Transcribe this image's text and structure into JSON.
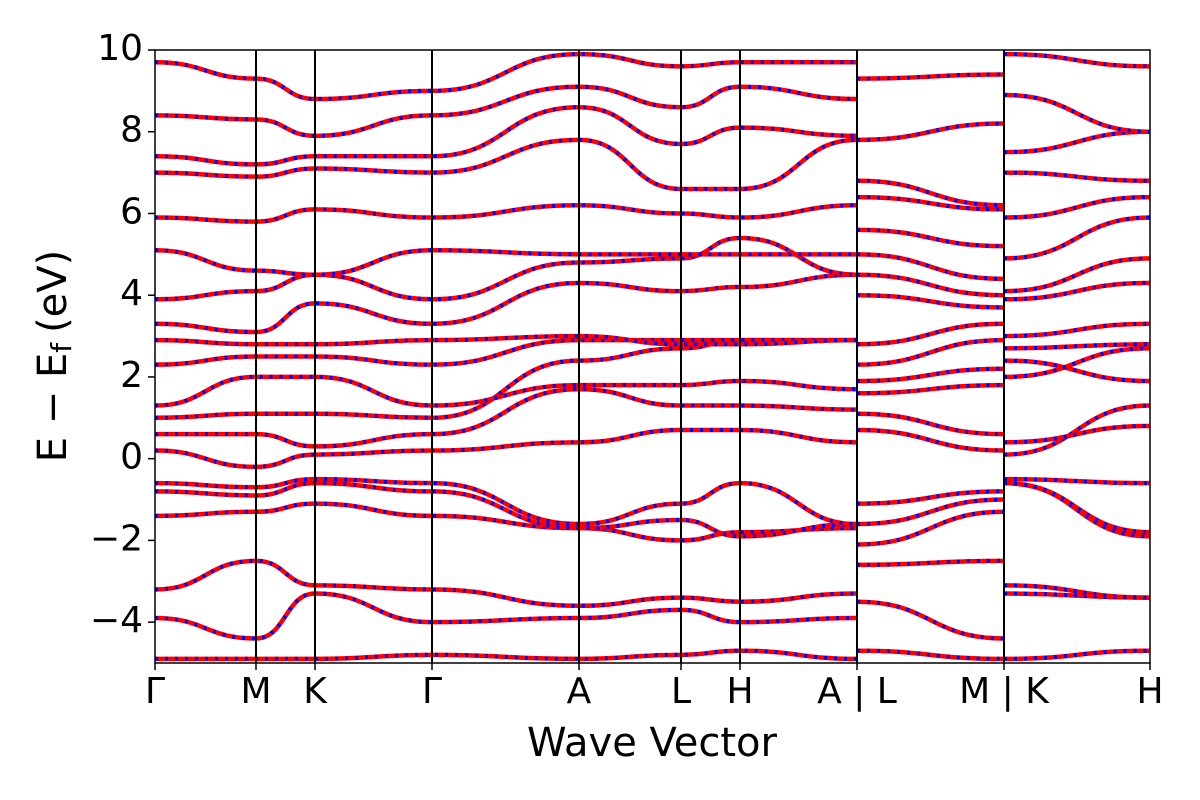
{
  "chart_data": {
    "type": "band",
    "xlabel": "Wave Vector",
    "ylabel": {
      "main": "E − E",
      "sub": "f",
      "unit": "(eV)"
    },
    "xlim": [
      0,
      995
    ],
    "ylim": [
      -5,
      10
    ],
    "xticks": [
      {
        "value": 0,
        "label": "Γ"
      },
      {
        "value": 101,
        "label": "M"
      },
      {
        "value": 160,
        "label": "K"
      },
      {
        "value": 277,
        "label": "Γ"
      },
      {
        "value": 424,
        "label": "A"
      },
      {
        "value": 526,
        "label": "L"
      },
      {
        "value": 585,
        "label": "H"
      },
      {
        "value": 702,
        "label": "A | L"
      },
      {
        "value": 849,
        "label": "M | K"
      },
      {
        "value": 995,
        "label": "H"
      }
    ],
    "yticks": [
      {
        "value": -4,
        "label": "−4"
      },
      {
        "value": -2,
        "label": "−2"
      },
      0,
      2,
      4,
      6,
      8,
      10
    ],
    "line_color": "#ff0000",
    "dash_color": "#0000ff",
    "x": [
      0,
      101,
      160,
      277,
      424,
      526,
      585,
      702,
      null,
      702,
      849,
      null,
      849,
      995
    ],
    "series": [
      {
        "values": [
          -4.9,
          -4.9,
          -4.9,
          -4.8,
          -4.9,
          -4.8,
          -4.7,
          -4.9,
          null,
          -4.7,
          -4.9,
          null,
          -4.9,
          -4.7
        ]
      },
      {
        "values": [
          -3.9,
          -4.4,
          -3.3,
          -4.0,
          -3.9,
          -3.7,
          -4.0,
          -3.9,
          null,
          -3.5,
          -4.4,
          null,
          -3.3,
          -3.4
        ]
      },
      {
        "values": [
          -3.2,
          -2.5,
          -3.1,
          -3.2,
          -3.6,
          -3.4,
          -3.5,
          -3.3,
          null,
          -2.6,
          -2.5,
          null,
          -3.1,
          -3.4
        ]
      },
      {
        "values": [
          -1.4,
          -1.3,
          -1.1,
          -1.4,
          -1.7,
          -2.0,
          -1.8,
          -1.7,
          null,
          -2.1,
          -1.3,
          null,
          -0.6,
          -1.9
        ]
      },
      {
        "values": [
          -0.8,
          -0.9,
          -0.6,
          -0.8,
          -1.7,
          -1.5,
          -1.9,
          -1.6,
          null,
          -1.6,
          -1.0,
          null,
          -0.6,
          -1.8
        ]
      },
      {
        "values": [
          -0.6,
          -0.7,
          -0.5,
          -0.6,
          -1.6,
          -1.1,
          -0.6,
          -1.6,
          null,
          -1.1,
          -0.8,
          null,
          -0.5,
          -0.6
        ]
      },
      {
        "values": [
          0.2,
          -0.2,
          0.1,
          0.2,
          0.4,
          0.7,
          0.7,
          0.4,
          null,
          0.7,
          0.2,
          null,
          0.1,
          1.3
        ]
      },
      {
        "values": [
          0.6,
          0.6,
          0.3,
          0.6,
          1.7,
          1.3,
          1.3,
          1.2,
          null,
          1.1,
          0.6,
          null,
          0.4,
          0.8
        ]
      },
      {
        "values": [
          1.0,
          1.1,
          1.1,
          1.0,
          2.4,
          2.7,
          2.9,
          2.9,
          null,
          1.6,
          1.8,
          null,
          2.4,
          1.9
        ]
      },
      {
        "values": [
          1.3,
          2.0,
          2.0,
          1.3,
          1.8,
          1.8,
          1.9,
          1.7,
          null,
          1.9,
          2.2,
          null,
          2.0,
          2.7
        ]
      },
      {
        "values": [
          2.3,
          2.5,
          2.5,
          2.3,
          2.9,
          2.9,
          2.9,
          2.9,
          null,
          2.3,
          2.9,
          null,
          2.7,
          2.8
        ]
      },
      {
        "values": [
          2.9,
          2.8,
          2.8,
          2.9,
          3.0,
          2.8,
          2.8,
          2.9,
          null,
          2.8,
          3.3,
          null,
          3.0,
          3.3
        ]
      },
      {
        "values": [
          3.3,
          3.1,
          3.8,
          3.3,
          4.3,
          4.1,
          4.2,
          4.5,
          null,
          4.0,
          3.7,
          null,
          3.9,
          4.3
        ]
      },
      {
        "values": [
          3.9,
          4.1,
          4.5,
          3.9,
          4.8,
          4.9,
          5.4,
          4.5,
          null,
          4.5,
          4.0,
          null,
          4.1,
          4.9
        ]
      },
      {
        "values": [
          5.1,
          4.6,
          4.5,
          5.1,
          5.0,
          5.0,
          5.0,
          5.0,
          null,
          5.0,
          4.4,
          null,
          4.9,
          5.9
        ]
      },
      {
        "values": [
          5.9,
          5.8,
          6.1,
          5.9,
          6.2,
          6.0,
          5.9,
          6.2,
          null,
          5.6,
          5.2,
          null,
          5.9,
          6.4
        ]
      },
      {
        "values": [
          7.0,
          6.9,
          7.1,
          7.0,
          7.8,
          6.6,
          6.6,
          7.8,
          null,
          6.4,
          6.1,
          null,
          7.0,
          6.8
        ]
      },
      {
        "values": [
          7.4,
          7.2,
          7.4,
          7.4,
          8.6,
          7.7,
          8.1,
          7.9,
          null,
          6.8,
          6.2,
          null,
          7.5,
          8.0
        ]
      },
      {
        "values": [
          8.4,
          8.3,
          7.9,
          8.4,
          9.1,
          8.6,
          9.1,
          8.8,
          null,
          7.8,
          8.2,
          null,
          8.9,
          8.0
        ]
      },
      {
        "values": [
          9.7,
          9.3,
          8.8,
          9.0,
          9.9,
          9.6,
          9.7,
          9.7,
          null,
          9.3,
          9.4,
          null,
          9.9,
          9.6
        ]
      }
    ]
  }
}
